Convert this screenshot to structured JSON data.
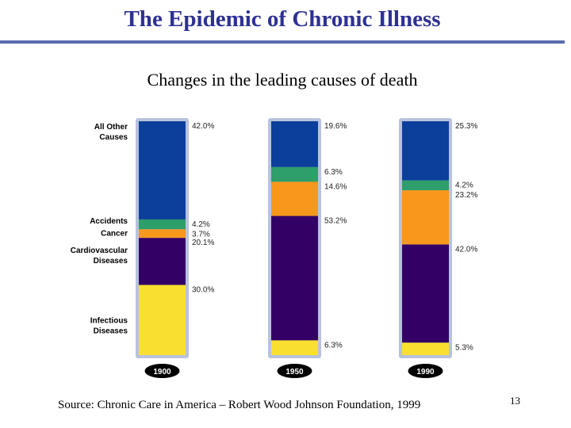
{
  "slide": {
    "title": "The Epidemic of Chronic Illness",
    "subtitle": "Changes in the leading causes of death",
    "source": "Source: Chronic Care in America – Robert Wood Johnson Foundation, 1999",
    "page_number": "13"
  },
  "chart_data": {
    "type": "bar",
    "stacked": true,
    "percent": true,
    "categories": [
      "1900",
      "1950",
      "1990"
    ],
    "series": [
      {
        "name": "All Other Causes",
        "values": [
          42.0,
          19.6,
          25.3
        ],
        "labels": [
          "42.0%",
          "19.6%",
          "25.3%"
        ],
        "color": "#0c3f9b"
      },
      {
        "name": "Accidents",
        "values": [
          4.2,
          6.3,
          4.2
        ],
        "labels": [
          "4.2%",
          "6.3%",
          "4.2%"
        ],
        "color": "#2e9e6a"
      },
      {
        "name": "Cancer",
        "values": [
          3.7,
          14.6,
          23.2
        ],
        "labels": [
          "3.7%",
          "14.6%",
          "23.2%"
        ],
        "color": "#f7981d"
      },
      {
        "name": "Cardiovascular Diseases",
        "values": [
          20.1,
          53.2,
          42.0
        ],
        "labels": [
          "20.1%",
          "53.2%",
          "42.0%"
        ],
        "color": "#330066"
      },
      {
        "name": "Infectious Diseases",
        "values": [
          30.0,
          6.3,
          5.3
        ],
        "labels": [
          "30.0%",
          "6.3%",
          "5.3%"
        ],
        "color": "#f9e030"
      }
    ],
    "row_labels": [
      {
        "series": "All Other Causes",
        "lines": [
          "All Other",
          "Causes"
        ]
      },
      {
        "series": "Accidents",
        "lines": [
          "Accidents"
        ]
      },
      {
        "series": "Cancer",
        "lines": [
          "Cancer"
        ]
      },
      {
        "series": "Cardiovascular Diseases",
        "lines": [
          "Cardiovascular",
          "Diseases"
        ]
      },
      {
        "series": "Infectious Diseases",
        "lines": [
          "Infectious",
          "Diseases"
        ]
      }
    ],
    "colors": {
      "frame": "#b8c2de",
      "year_badge": "#000000",
      "title": "#2e3192"
    }
  }
}
